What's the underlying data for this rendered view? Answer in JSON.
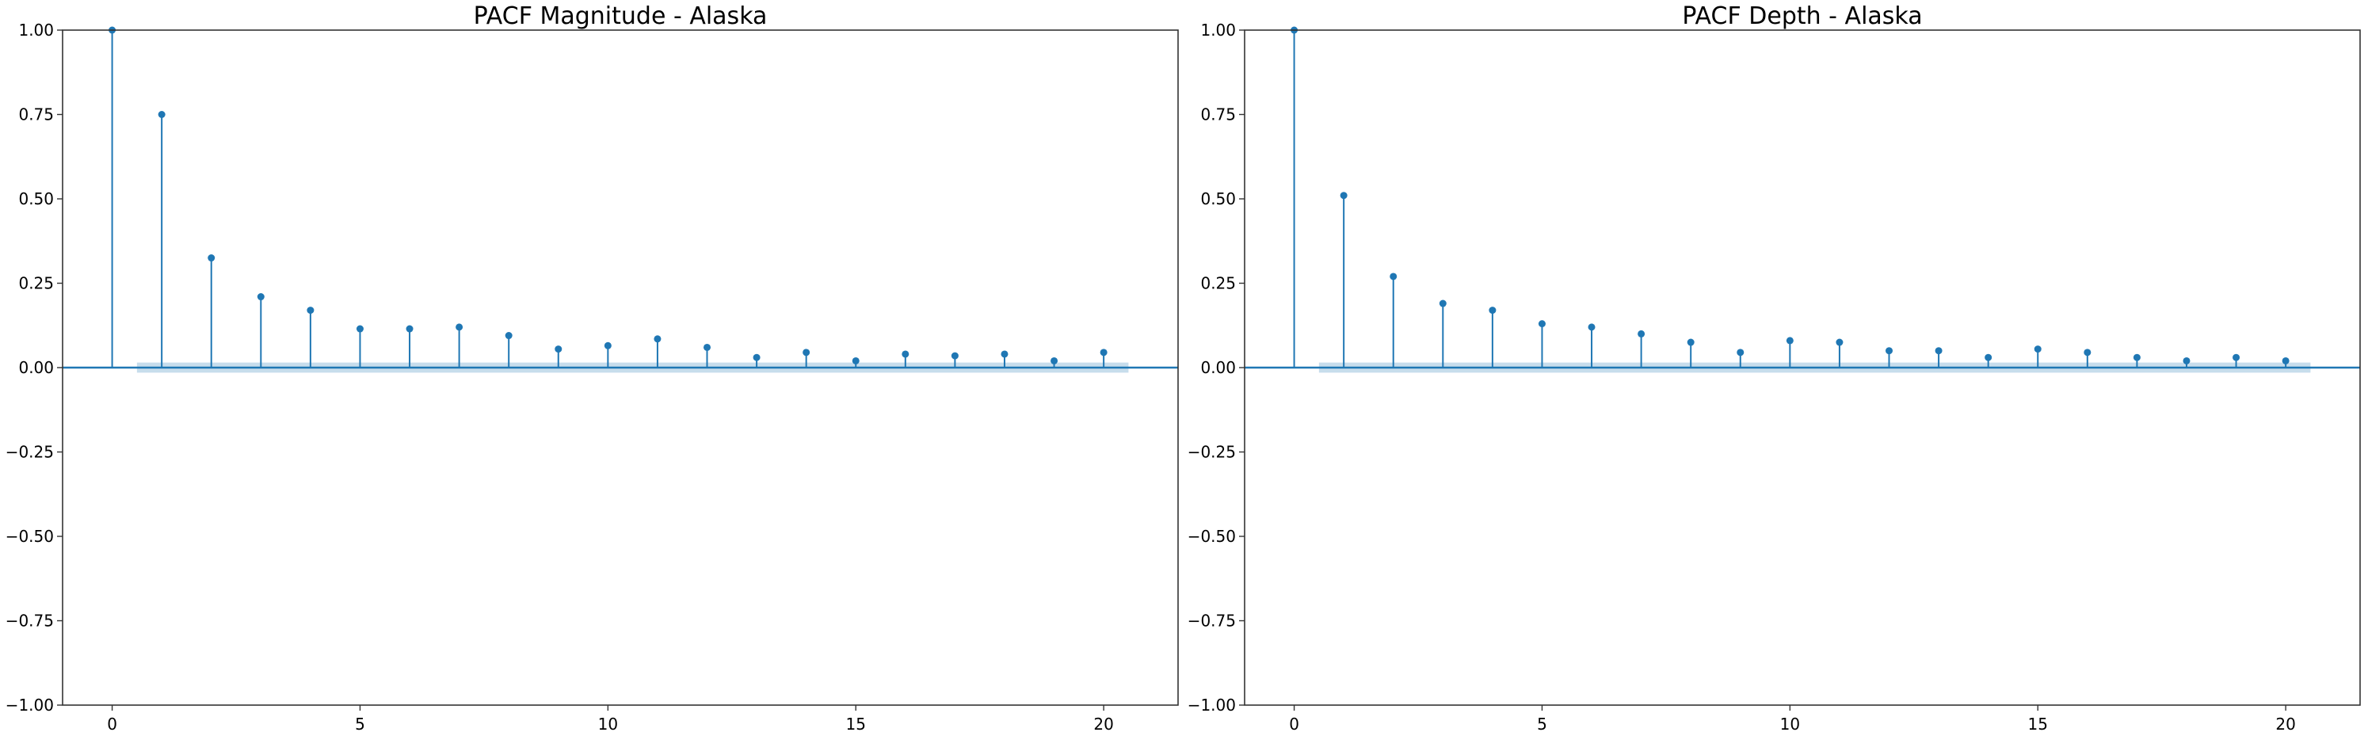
{
  "chart_data": [
    {
      "type": "stem",
      "title": "PACF Magnitude - Alaska",
      "xlabel": "",
      "ylabel": "",
      "xlim": [
        -1,
        21.5
      ],
      "ylim": [
        -1.0,
        1.0
      ],
      "x_ticks": [
        0,
        5,
        10,
        15,
        20
      ],
      "y_ticks": [
        -1.0,
        -0.75,
        -0.5,
        -0.25,
        0.0,
        0.25,
        0.5,
        0.75,
        1.0
      ],
      "x_tick_labels": [
        "0",
        "5",
        "10",
        "15",
        "20"
      ],
      "y_tick_labels": [
        "−1.00",
        "−0.75",
        "−0.50",
        "−0.25",
        "0.00",
        "0.25",
        "0.50",
        "0.75",
        "1.00"
      ],
      "lags": [
        0,
        1,
        2,
        3,
        4,
        5,
        6,
        7,
        8,
        9,
        10,
        11,
        12,
        13,
        14,
        15,
        16,
        17,
        18,
        19,
        20
      ],
      "values": [
        1.0,
        0.75,
        0.325,
        0.21,
        0.17,
        0.115,
        0.115,
        0.12,
        0.095,
        0.055,
        0.065,
        0.085,
        0.06,
        0.03,
        0.045,
        0.02,
        0.04,
        0.035,
        0.04,
        0.02,
        0.045
      ],
      "confidence_band": {
        "from_lag": 0.5,
        "to_lag": 20.5,
        "lower": -0.015,
        "upper": 0.015
      },
      "grid": false
    },
    {
      "type": "stem",
      "title": "PACF Depth - Alaska",
      "xlabel": "",
      "ylabel": "",
      "xlim": [
        -1,
        21.5
      ],
      "ylim": [
        -1.0,
        1.0
      ],
      "x_ticks": [
        0,
        5,
        10,
        15,
        20
      ],
      "y_ticks": [
        -1.0,
        -0.75,
        -0.5,
        -0.25,
        0.0,
        0.25,
        0.5,
        0.75,
        1.0
      ],
      "x_tick_labels": [
        "0",
        "5",
        "10",
        "15",
        "20"
      ],
      "y_tick_labels": [
        "−1.00",
        "−0.75",
        "−0.50",
        "−0.25",
        "0.00",
        "0.25",
        "0.50",
        "0.75",
        "1.00"
      ],
      "lags": [
        0,
        1,
        2,
        3,
        4,
        5,
        6,
        7,
        8,
        9,
        10,
        11,
        12,
        13,
        14,
        15,
        16,
        17,
        18,
        19,
        20
      ],
      "values": [
        1.0,
        0.51,
        0.27,
        0.19,
        0.17,
        0.13,
        0.12,
        0.1,
        0.075,
        0.045,
        0.08,
        0.075,
        0.05,
        0.05,
        0.03,
        0.055,
        0.045,
        0.03,
        0.02,
        0.03,
        0.02
      ],
      "confidence_band": {
        "from_lag": 0.5,
        "to_lag": 20.5,
        "lower": -0.015,
        "upper": 0.015
      },
      "grid": false
    }
  ],
  "colors": {
    "stem": "#1f77b4",
    "band": "#1f77b4",
    "axis": "#333333",
    "text": "#000000"
  }
}
